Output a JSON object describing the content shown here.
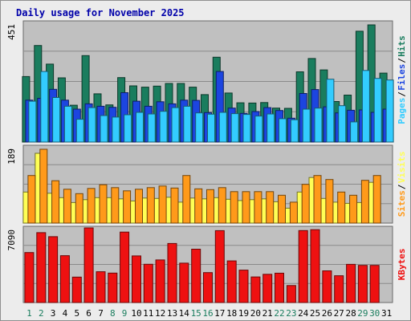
{
  "chart_data": [
    {
      "type": "bar",
      "title": "Daily usage for November 2025",
      "categories": [
        "1",
        "2",
        "3",
        "4",
        "5",
        "6",
        "7",
        "8",
        "9",
        "10",
        "11",
        "12",
        "13",
        "14",
        "15",
        "16",
        "17",
        "18",
        "19",
        "20",
        "21",
        "22",
        "23",
        "24",
        "25",
        "26",
        "27",
        "28",
        "29",
        "30",
        "31"
      ],
      "weekend_days": [
        "1",
        "2",
        "8",
        "9",
        "15",
        "16",
        "22",
        "23",
        "29",
        "30"
      ],
      "ymax_label": "451",
      "ylim": [
        0,
        451
      ],
      "series": [
        {
          "name": "Hits",
          "color": "#1a7d5e",
          "values": [
            247,
            364,
            294,
            242,
            139,
            326,
            182,
            140,
            243,
            212,
            207,
            211,
            221,
            221,
            207,
            179,
            320,
            185,
            148,
            147,
            149,
            128,
            127,
            265,
            315,
            272,
            153,
            177,
            418,
            442,
            260
          ]
        },
        {
          "name": "Files",
          "color": "#1c45e0",
          "values": [
            158,
            165,
            199,
            158,
            124,
            144,
            135,
            131,
            186,
            154,
            135,
            152,
            144,
            158,
            157,
            111,
            266,
            128,
            108,
            115,
            130,
            119,
            90,
            183,
            198,
            133,
            110,
            120,
            121,
            112,
            124
          ]
        },
        {
          "name": "Pages",
          "color": "#33ccff",
          "values": [
            154,
            266,
            168,
            135,
            86,
            130,
            100,
            94,
            103,
            112,
            106,
            116,
            130,
            135,
            110,
            105,
            112,
            107,
            104,
            98,
            106,
            88,
            84,
            124,
            128,
            237,
            137,
            76,
            270,
            240,
            234
          ]
        }
      ],
      "side_label": [
        "Pages",
        "Files",
        "Hits"
      ]
    },
    {
      "type": "bar",
      "categories": [
        "1",
        "2",
        "3",
        "4",
        "5",
        "6",
        "7",
        "8",
        "9",
        "10",
        "11",
        "12",
        "13",
        "14",
        "15",
        "16",
        "17",
        "18",
        "19",
        "20",
        "21",
        "22",
        "23",
        "24",
        "25",
        "26",
        "27",
        "28",
        "29",
        "30",
        "31"
      ],
      "ymax_label": "189",
      "ylim": [
        0,
        189
      ],
      "series": [
        {
          "name": "Visits",
          "color": "#ffff55",
          "values": [
            77,
            173,
            74,
            63,
            51,
            58,
            63,
            63,
            60,
            55,
            62,
            61,
            64,
            52,
            62,
            60,
            63,
            59,
            56,
            58,
            60,
            53,
            37,
            77,
            113,
            61,
            52,
            49,
            51,
            101,
            null
          ]
        },
        {
          "name": "Sites",
          "color": "#ff9a1a",
          "values": [
            118,
            183,
            105,
            84,
            73,
            86,
            95,
            88,
            80,
            84,
            88,
            92,
            87,
            118,
            85,
            83,
            88,
            78,
            78,
            78,
            78,
            69,
            52,
            96,
            118,
            108,
            77,
            69,
            106,
            118,
            null
          ]
        }
      ],
      "side_label": [
        "Sites",
        "Visits"
      ]
    },
    {
      "type": "bar",
      "categories": [
        "1",
        "2",
        "3",
        "4",
        "5",
        "6",
        "7",
        "8",
        "9",
        "10",
        "11",
        "12",
        "13",
        "14",
        "15",
        "16",
        "17",
        "18",
        "19",
        "20",
        "21",
        "22",
        "23",
        "24",
        "25",
        "26",
        "27",
        "28",
        "29",
        "30",
        "31"
      ],
      "ymax_label": "7090",
      "ylim": [
        0,
        7090
      ],
      "series": [
        {
          "name": "KBytes",
          "color": "#ee1111",
          "values": [
            4750,
            6640,
            6260,
            4450,
            2420,
            7090,
            2930,
            2800,
            6690,
            4430,
            3640,
            4050,
            5610,
            3740,
            5070,
            2840,
            6830,
            3960,
            3080,
            2430,
            2680,
            2790,
            1620,
            6840,
            6920,
            3010,
            2550,
            3630,
            3530,
            3530,
            null
          ]
        }
      ],
      "side_label": [
        "KBytes"
      ]
    }
  ],
  "colors": {
    "frame_bg": "#ececec",
    "plot_bg": "#c0c0c0",
    "grid": "#8a8a8a",
    "title": "#0000aa",
    "weekday_label": "#000000",
    "weekend_label": "#1a7d5e"
  }
}
